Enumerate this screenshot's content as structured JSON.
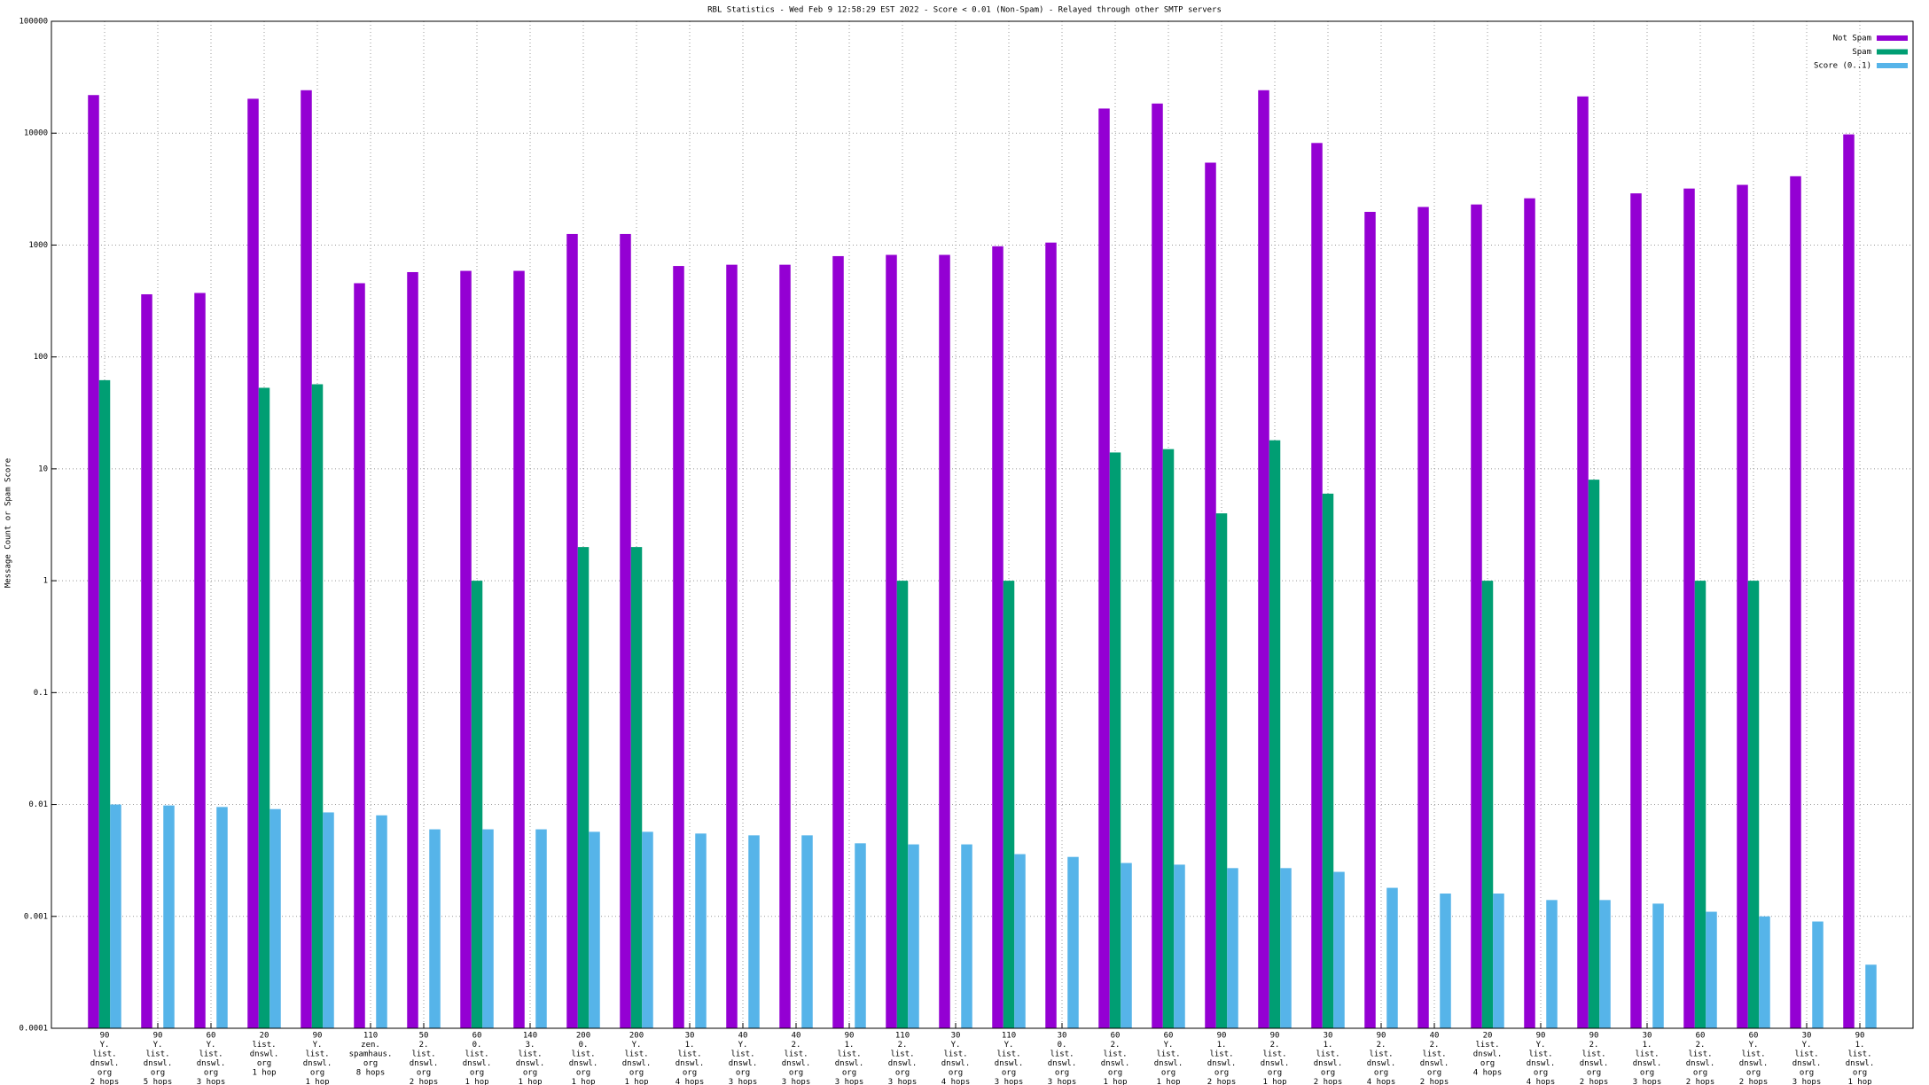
{
  "chart_data": {
    "type": "bar",
    "title": "RBL Statistics - Wed Feb  9 12:58:29 EST 2022 - Score < 0.01 (Non-Spam) - Relayed through other SMTP servers",
    "y_label": "Message Count or Spam Score",
    "log": true,
    "grid": true,
    "legend": "top-right",
    "ylim": [
      0.0001,
      100000
    ],
    "yticks": [
      0.0001,
      0.001,
      0.01,
      0.1,
      1,
      10,
      100,
      1000,
      10000,
      100000
    ],
    "categories": [
      [
        "90",
        "Y.",
        "list.",
        "dnswl.",
        "org",
        "2 hops"
      ],
      [
        "90",
        "Y.",
        "list.",
        "dnswl.",
        "org",
        "5 hops"
      ],
      [
        "60",
        "Y.",
        "list.",
        "dnswl.",
        "org",
        "3 hops"
      ],
      [
        "20",
        "list.",
        "dnswl.",
        "org",
        "1 hop"
      ],
      [
        "90",
        "Y.",
        "list.",
        "dnswl.",
        "org",
        "1 hop"
      ],
      [
        "110",
        "zen.",
        "spamhaus.",
        "org",
        "8 hops"
      ],
      [
        "50",
        "2.",
        "list.",
        "dnswl.",
        "org",
        "2 hops"
      ],
      [
        "60",
        "0.",
        "list.",
        "dnswl.",
        "org",
        "1 hop"
      ],
      [
        "140",
        "3.",
        "list.",
        "dnswl.",
        "org",
        "1 hop"
      ],
      [
        "200",
        "0.",
        "list.",
        "dnswl.",
        "org",
        "1 hop"
      ],
      [
        "200",
        "Y.",
        "list.",
        "dnswl.",
        "org",
        "1 hop"
      ],
      [
        "30",
        "1.",
        "list.",
        "dnswl.",
        "org",
        "4 hops"
      ],
      [
        "40",
        "Y.",
        "list.",
        "dnswl.",
        "org",
        "3 hops"
      ],
      [
        "40",
        "2.",
        "list.",
        "dnswl.",
        "org",
        "3 hops"
      ],
      [
        "90",
        "1.",
        "list.",
        "dnswl.",
        "org",
        "3 hops"
      ],
      [
        "110",
        "2.",
        "list.",
        "dnswl.",
        "org",
        "3 hops"
      ],
      [
        "30",
        "Y.",
        "list.",
        "dnswl.",
        "org",
        "4 hops"
      ],
      [
        "110",
        "Y.",
        "list.",
        "dnswl.",
        "org",
        "3 hops"
      ],
      [
        "30",
        "0.",
        "list.",
        "dnswl.",
        "org",
        "3 hops"
      ],
      [
        "60",
        "2.",
        "list.",
        "dnswl.",
        "org",
        "1 hop"
      ],
      [
        "60",
        "Y.",
        "list.",
        "dnswl.",
        "org",
        "1 hop"
      ],
      [
        "90",
        "1.",
        "list.",
        "dnswl.",
        "org",
        "2 hops"
      ],
      [
        "90",
        "2.",
        "list.",
        "dnswl.",
        "org",
        "1 hop"
      ],
      [
        "30",
        "1.",
        "list.",
        "dnswl.",
        "org",
        "2 hops"
      ],
      [
        "90",
        "2.",
        "list.",
        "dnswl.",
        "org",
        "4 hops"
      ],
      [
        "40",
        "2.",
        "list.",
        "dnswl.",
        "org",
        "2 hops"
      ],
      [
        "20",
        "list.",
        "dnswl.",
        "org",
        "4 hops"
      ],
      [
        "90",
        "Y.",
        "list.",
        "dnswl.",
        "org",
        "4 hops"
      ],
      [
        "90",
        "2.",
        "list.",
        "dnswl.",
        "org",
        "2 hops"
      ],
      [
        "30",
        "1.",
        "list.",
        "dnswl.",
        "org",
        "3 hops"
      ],
      [
        "60",
        "2.",
        "list.",
        "dnswl.",
        "org",
        "2 hops"
      ],
      [
        "60",
        "Y.",
        "list.",
        "dnswl.",
        "org",
        "2 hops"
      ],
      [
        "30",
        "Y.",
        "list.",
        "dnswl.",
        "org",
        "3 hops"
      ],
      [
        "90",
        "1.",
        "list.",
        "dnswl.",
        "org",
        "1 hop"
      ]
    ],
    "series": [
      {
        "name": "Not Spam",
        "color": "#9400d3",
        "values": [
          21900,
          363,
          373,
          20300,
          24200,
          456,
          573,
          588,
          588,
          1256,
          1256,
          650,
          667,
          667,
          796,
          817,
          817,
          975,
          1052,
          16600,
          18400,
          5450,
          24200,
          8170,
          1980,
          2190,
          2305,
          2617,
          21300,
          2897,
          3200,
          3452,
          4120,
          9750
        ]
      },
      {
        "name": "Spam",
        "color": "#009e73",
        "values": [
          62,
          null,
          null,
          53,
          57,
          null,
          null,
          1,
          null,
          2,
          2,
          null,
          null,
          null,
          null,
          1,
          null,
          1,
          null,
          14,
          15,
          4,
          18,
          6,
          null,
          null,
          1,
          null,
          8,
          null,
          1,
          1,
          null,
          null
        ]
      },
      {
        "name": "Score (0..1)",
        "color": "#56b4e9",
        "values": [
          0.01,
          0.0098,
          0.0095,
          0.0091,
          0.0085,
          0.008,
          0.006,
          0.006,
          0.006,
          0.0057,
          0.0057,
          0.0055,
          0.0053,
          0.0053,
          0.0045,
          0.0044,
          0.0044,
          0.0036,
          0.0034,
          0.003,
          0.0029,
          0.0027,
          0.0027,
          0.0025,
          0.0018,
          0.0016,
          0.0016,
          0.0014,
          0.0014,
          0.0013,
          0.0011,
          0.001,
          0.0009,
          0.00037
        ]
      }
    ]
  }
}
